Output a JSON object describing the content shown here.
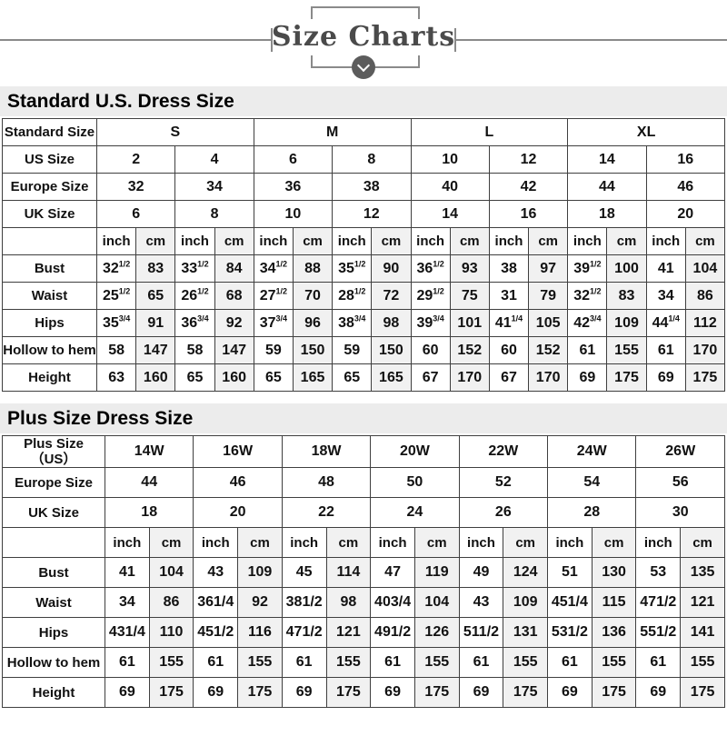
{
  "header": {
    "title": "Size Charts"
  },
  "colors": {
    "title_bar_bg": "#ececec",
    "shaded_cell_bg": "#f1f1f1",
    "border": "#3f3f3f",
    "decor": "#8a8a8a",
    "decor_dark": "#5c5c5c",
    "title_color": "#4a4a4a"
  },
  "tables": [
    {
      "title": "Standard U.S. Dress Size",
      "size_rows": [
        {
          "label": "Standard Size",
          "span": 4,
          "values": [
            "S",
            "M",
            "L",
            "XL"
          ]
        },
        {
          "label": "US Size",
          "span": 2,
          "values": [
            "2",
            "4",
            "6",
            "8",
            "10",
            "12",
            "14",
            "16"
          ]
        },
        {
          "label": "Europe Size",
          "span": 2,
          "values": [
            "32",
            "34",
            "36",
            "38",
            "40",
            "42",
            "44",
            "46"
          ]
        },
        {
          "label": "UK Size",
          "span": 2,
          "values": [
            "6",
            "8",
            "10",
            "12",
            "14",
            "16",
            "18",
            "20"
          ]
        }
      ],
      "unit_row": {
        "units": [
          "inch",
          "cm"
        ],
        "pairs": 8
      },
      "measure_rows": [
        {
          "label": "Bust",
          "values": [
            "32^1/2",
            "83",
            "33^1/2",
            "84",
            "34^1/2",
            "88",
            "35^1/2",
            "90",
            "36^1/2",
            "93",
            "38",
            "97",
            "39^1/2",
            "100",
            "41",
            "104"
          ]
        },
        {
          "label": "Waist",
          "values": [
            "25^1/2",
            "65",
            "26^1/2",
            "68",
            "27^1/2",
            "70",
            "28^1/2",
            "72",
            "29^1/2",
            "75",
            "31",
            "79",
            "32^1/2",
            "83",
            "34",
            "86"
          ]
        },
        {
          "label": "Hips",
          "values": [
            "35^3/4",
            "91",
            "36^3/4",
            "92",
            "37^3/4",
            "96",
            "38^3/4",
            "98",
            "39^3/4",
            "101",
            "41^1/4",
            "105",
            "42^3/4",
            "109",
            "44^1/4",
            "112"
          ]
        },
        {
          "label": "Hollow to hem",
          "values": [
            "58",
            "147",
            "58",
            "147",
            "59",
            "150",
            "59",
            "150",
            "60",
            "152",
            "60",
            "152",
            "61",
            "155",
            "61",
            "170"
          ]
        },
        {
          "label": "Height",
          "values": [
            "63",
            "160",
            "65",
            "160",
            "65",
            "165",
            "65",
            "165",
            "67",
            "170",
            "67",
            "170",
            "69",
            "175",
            "69",
            "175"
          ]
        }
      ]
    },
    {
      "title": "Plus Size Dress Size",
      "size_rows": [
        {
          "label": "Plus Size\n（US）",
          "span": 2,
          "values": [
            "14W",
            "16W",
            "18W",
            "20W",
            "22W",
            "24W",
            "26W"
          ]
        },
        {
          "label": "Europe Size",
          "span": 2,
          "values": [
            "44",
            "46",
            "48",
            "50",
            "52",
            "54",
            "56"
          ]
        },
        {
          "label": "UK Size",
          "span": 2,
          "values": [
            "18",
            "20",
            "22",
            "24",
            "26",
            "28",
            "30"
          ]
        }
      ],
      "unit_row": {
        "units": [
          "inch",
          "cm"
        ],
        "pairs": 7
      },
      "measure_rows": [
        {
          "label": "Bust",
          "values": [
            "41",
            "104",
            "43",
            "109",
            "45",
            "114",
            "47",
            "119",
            "49",
            "124",
            "51",
            "130",
            "53",
            "135"
          ]
        },
        {
          "label": "Waist",
          "values": [
            "34",
            "86",
            "361/4",
            "92",
            "381/2",
            "98",
            "403/4",
            "104",
            "43",
            "109",
            "451/4",
            "115",
            "471/2",
            "121"
          ]
        },
        {
          "label": "Hips",
          "values": [
            "431/4",
            "110",
            "451/2",
            "116",
            "471/2",
            "121",
            "491/2",
            "126",
            "511/2",
            "131",
            "531/2",
            "136",
            "551/2",
            "141"
          ]
        },
        {
          "label": "Hollow to hem",
          "values": [
            "61",
            "155",
            "61",
            "155",
            "61",
            "155",
            "61",
            "155",
            "61",
            "155",
            "61",
            "155",
            "61",
            "155"
          ]
        },
        {
          "label": "Height",
          "values": [
            "69",
            "175",
            "69",
            "175",
            "69",
            "175",
            "69",
            "175",
            "69",
            "175",
            "69",
            "175",
            "69",
            "175"
          ]
        }
      ]
    }
  ]
}
